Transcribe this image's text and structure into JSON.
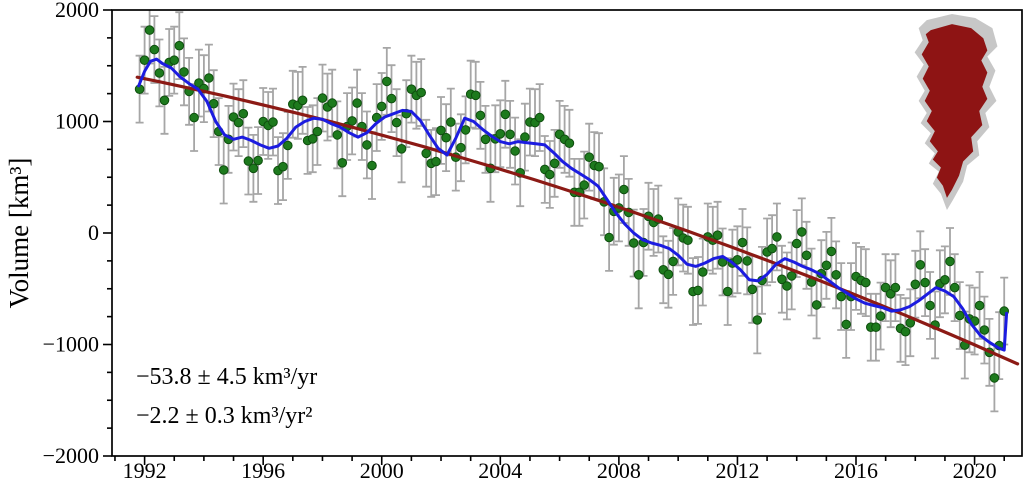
{
  "figure": {
    "annotations": {
      "trend_rate": "−53.8 ± 4.5 km³/yr",
      "trend_accel": "−2.2 ± 0.3 km³/yr²"
    },
    "inset": {
      "label": "greenland-ice-sheet-map",
      "land_color": "#c7c7c7",
      "land_edge": "#9a9a9a",
      "ice_color": "#8e1414"
    }
  },
  "chart_data": {
    "type": "scatter",
    "title": "",
    "xlabel": "",
    "ylabel": "Volume [km³]",
    "xlim": [
      1990.9,
      2021.6
    ],
    "ylim": [
      -2000,
      2000
    ],
    "x_ticks": [
      1992,
      1996,
      2000,
      2004,
      2008,
      2012,
      2016,
      2020
    ],
    "x_minor_step": 1,
    "y_ticks": [
      -2000,
      -1000,
      0,
      1000,
      2000
    ],
    "y_tick_labels": [
      "−2000",
      "−1000",
      "0",
      "1000",
      "2000"
    ],
    "y_minor_step": 250,
    "grid": false,
    "legend": "none",
    "colors": {
      "points": "#1d7a1d",
      "points_edge": "#0e4f0e",
      "error_bars": "#a6a6a6",
      "smoothed_line": "#1c1ce0",
      "trend_line": "#8c1a15",
      "axis": "#000000"
    },
    "series": [
      {
        "name": "monthly-volume-anomaly",
        "type": "scatter_errorbar",
        "error_bar": 300,
        "points": [
          [
            1991.83,
            1290
          ],
          [
            1992.0,
            1550
          ],
          [
            1992.17,
            1820
          ],
          [
            1992.33,
            1645
          ],
          [
            1992.5,
            1435
          ],
          [
            1992.67,
            1190
          ],
          [
            1992.83,
            1530
          ],
          [
            1993.0,
            1550
          ],
          [
            1993.17,
            1680
          ],
          [
            1993.33,
            1445
          ],
          [
            1993.5,
            1270
          ],
          [
            1993.67,
            1035
          ],
          [
            1993.83,
            1345
          ],
          [
            1994.0,
            1295
          ],
          [
            1994.17,
            1390
          ],
          [
            1994.33,
            1160
          ],
          [
            1994.5,
            910
          ],
          [
            1994.67,
            565
          ],
          [
            1994.83,
            840
          ],
          [
            1995.0,
            1040
          ],
          [
            1995.17,
            990
          ],
          [
            1995.33,
            1070
          ],
          [
            1995.5,
            645
          ],
          [
            1995.67,
            580
          ],
          [
            1995.83,
            650
          ],
          [
            1996.0,
            1000
          ],
          [
            1996.17,
            965
          ],
          [
            1996.33,
            995
          ],
          [
            1996.5,
            560
          ],
          [
            1996.67,
            595
          ],
          [
            1996.83,
            785
          ],
          [
            1997.0,
            1155
          ],
          [
            1997.17,
            1145
          ],
          [
            1997.33,
            1190
          ],
          [
            1997.5,
            830
          ],
          [
            1997.67,
            845
          ],
          [
            1997.83,
            910
          ],
          [
            1998.0,
            1210
          ],
          [
            1998.17,
            1130
          ],
          [
            1998.33,
            1165
          ],
          [
            1998.5,
            880
          ],
          [
            1998.67,
            630
          ],
          [
            1998.83,
            955
          ],
          [
            1999.0,
            1005
          ],
          [
            1999.17,
            1165
          ],
          [
            1999.33,
            955
          ],
          [
            1999.5,
            790
          ],
          [
            1999.67,
            605
          ],
          [
            1999.83,
            1035
          ],
          [
            2000.0,
            1135
          ],
          [
            2000.17,
            1360
          ],
          [
            2000.33,
            1205
          ],
          [
            2000.5,
            990
          ],
          [
            2000.67,
            755
          ],
          [
            2000.83,
            1070
          ],
          [
            2001.0,
            1290
          ],
          [
            2001.17,
            1235
          ],
          [
            2001.33,
            1260
          ],
          [
            2001.5,
            715
          ],
          [
            2001.67,
            625
          ],
          [
            2001.83,
            640
          ],
          [
            2002.0,
            920
          ],
          [
            2002.17,
            855
          ],
          [
            2002.33,
            995
          ],
          [
            2002.5,
            680
          ],
          [
            2002.67,
            765
          ],
          [
            2002.83,
            925
          ],
          [
            2003.0,
            1245
          ],
          [
            2003.17,
            1235
          ],
          [
            2003.33,
            1055
          ],
          [
            2003.5,
            840
          ],
          [
            2003.67,
            580
          ],
          [
            2003.83,
            845
          ],
          [
            2004.0,
            890
          ],
          [
            2004.17,
            1065
          ],
          [
            2004.33,
            885
          ],
          [
            2004.5,
            735
          ],
          [
            2004.67,
            540
          ],
          [
            2004.83,
            860
          ],
          [
            2005.0,
            995
          ],
          [
            2005.17,
            990
          ],
          [
            2005.33,
            1035
          ],
          [
            2005.5,
            570
          ],
          [
            2005.67,
            525
          ],
          [
            2005.83,
            625
          ],
          [
            2006.0,
            885
          ],
          [
            2006.17,
            840
          ],
          [
            2006.33,
            805
          ],
          [
            2006.5,
            365
          ],
          [
            2006.67,
            365
          ],
          [
            2006.83,
            430
          ],
          [
            2007.0,
            680
          ],
          [
            2007.17,
            605
          ],
          [
            2007.33,
            595
          ],
          [
            2007.5,
            280
          ],
          [
            2007.67,
            -40
          ],
          [
            2007.83,
            195
          ],
          [
            2008.0,
            225
          ],
          [
            2008.17,
            390
          ],
          [
            2008.33,
            185
          ],
          [
            2008.5,
            -90
          ],
          [
            2008.67,
            -375
          ],
          [
            2008.83,
            -85
          ],
          [
            2009.0,
            150
          ],
          [
            2009.17,
            95
          ],
          [
            2009.33,
            125
          ],
          [
            2009.5,
            -330
          ],
          [
            2009.67,
            -370
          ],
          [
            2009.83,
            -255
          ],
          [
            2010.0,
            10
          ],
          [
            2010.17,
            -45
          ],
          [
            2010.33,
            -65
          ],
          [
            2010.5,
            -525
          ],
          [
            2010.67,
            -515
          ],
          [
            2010.83,
            -350
          ],
          [
            2011.0,
            -35
          ],
          [
            2011.17,
            -65
          ],
          [
            2011.33,
            -20
          ],
          [
            2011.5,
            -260
          ],
          [
            2011.67,
            -525
          ],
          [
            2011.83,
            -270
          ],
          [
            2012.0,
            -240
          ],
          [
            2012.17,
            -85
          ],
          [
            2012.33,
            -250
          ],
          [
            2012.5,
            -505
          ],
          [
            2012.67,
            -780
          ],
          [
            2012.83,
            -425
          ],
          [
            2013.0,
            -170
          ],
          [
            2013.17,
            -140
          ],
          [
            2013.33,
            -35
          ],
          [
            2013.5,
            -415
          ],
          [
            2013.67,
            -475
          ],
          [
            2013.83,
            -385
          ],
          [
            2014.0,
            -95
          ],
          [
            2014.17,
            10
          ],
          [
            2014.33,
            -200
          ],
          [
            2014.5,
            -440
          ],
          [
            2014.67,
            -645
          ],
          [
            2014.83,
            -365
          ],
          [
            2015.0,
            -290
          ],
          [
            2015.17,
            -165
          ],
          [
            2015.33,
            -375
          ],
          [
            2015.5,
            -570
          ],
          [
            2015.67,
            -820
          ],
          [
            2015.83,
            -570
          ],
          [
            2016.0,
            -390
          ],
          [
            2016.17,
            -425
          ],
          [
            2016.33,
            -445
          ],
          [
            2016.5,
            -845
          ],
          [
            2016.67,
            -845
          ],
          [
            2016.83,
            -745
          ],
          [
            2017.0,
            -490
          ],
          [
            2017.17,
            -545
          ],
          [
            2017.33,
            -490
          ],
          [
            2017.5,
            -855
          ],
          [
            2017.67,
            -885
          ],
          [
            2017.83,
            -805
          ],
          [
            2018.0,
            -460
          ],
          [
            2018.17,
            -285
          ],
          [
            2018.33,
            -445
          ],
          [
            2018.5,
            -650
          ],
          [
            2018.67,
            -825
          ],
          [
            2018.83,
            -455
          ],
          [
            2019.0,
            -420
          ],
          [
            2019.17,
            -255
          ],
          [
            2019.33,
            -490
          ],
          [
            2019.5,
            -740
          ],
          [
            2019.67,
            -1005
          ],
          [
            2019.83,
            -770
          ],
          [
            2020.0,
            -790
          ],
          [
            2020.17,
            -650
          ],
          [
            2020.33,
            -870
          ],
          [
            2020.5,
            -1070
          ],
          [
            2020.67,
            -1300
          ],
          [
            2020.83,
            -1010
          ],
          [
            2021.0,
            -700
          ]
        ]
      },
      {
        "name": "smoothed-volume",
        "type": "line",
        "points": [
          [
            1991.8,
            1320
          ],
          [
            1992.0,
            1450
          ],
          [
            1992.2,
            1540
          ],
          [
            1992.4,
            1560
          ],
          [
            1992.6,
            1520
          ],
          [
            1992.9,
            1480
          ],
          [
            1993.2,
            1400
          ],
          [
            1993.5,
            1340
          ],
          [
            1993.8,
            1290
          ],
          [
            1994.1,
            1180
          ],
          [
            1994.4,
            1000
          ],
          [
            1994.7,
            880
          ],
          [
            1995.0,
            840
          ],
          [
            1995.3,
            860
          ],
          [
            1995.6,
            830
          ],
          [
            1995.9,
            790
          ],
          [
            1996.2,
            760
          ],
          [
            1996.5,
            780
          ],
          [
            1996.8,
            850
          ],
          [
            1997.1,
            950
          ],
          [
            1997.4,
            1000
          ],
          [
            1997.7,
            1030
          ],
          [
            1998.0,
            1020
          ],
          [
            1998.3,
            980
          ],
          [
            1998.6,
            950
          ],
          [
            1998.9,
            900
          ],
          [
            1999.2,
            860
          ],
          [
            1999.5,
            900
          ],
          [
            1999.8,
            980
          ],
          [
            2000.1,
            1040
          ],
          [
            2000.4,
            1070
          ],
          [
            2000.7,
            1100
          ],
          [
            2001.0,
            1090
          ],
          [
            2001.3,
            1010
          ],
          [
            2001.6,
            880
          ],
          [
            2001.9,
            760
          ],
          [
            2002.2,
            700
          ],
          [
            2002.5,
            850
          ],
          [
            2002.8,
            1030
          ],
          [
            2003.1,
            1000
          ],
          [
            2003.4,
            930
          ],
          [
            2003.7,
            870
          ],
          [
            2004.0,
            820
          ],
          [
            2004.3,
            800
          ],
          [
            2004.6,
            820
          ],
          [
            2004.9,
            810
          ],
          [
            2005.2,
            800
          ],
          [
            2005.5,
            790
          ],
          [
            2005.8,
            720
          ],
          [
            2006.1,
            640
          ],
          [
            2006.4,
            580
          ],
          [
            2006.7,
            530
          ],
          [
            2007.0,
            480
          ],
          [
            2007.3,
            420
          ],
          [
            2007.6,
            300
          ],
          [
            2007.9,
            180
          ],
          [
            2008.2,
            80
          ],
          [
            2008.5,
            0
          ],
          [
            2008.8,
            -60
          ],
          [
            2009.1,
            -90
          ],
          [
            2009.4,
            -110
          ],
          [
            2009.7,
            -140
          ],
          [
            2010.0,
            -200
          ],
          [
            2010.3,
            -280
          ],
          [
            2010.6,
            -300
          ],
          [
            2010.9,
            -270
          ],
          [
            2011.2,
            -230
          ],
          [
            2011.5,
            -210
          ],
          [
            2011.8,
            -260
          ],
          [
            2012.1,
            -330
          ],
          [
            2012.4,
            -420
          ],
          [
            2012.7,
            -430
          ],
          [
            2013.0,
            -370
          ],
          [
            2013.3,
            -280
          ],
          [
            2013.6,
            -230
          ],
          [
            2013.9,
            -260
          ],
          [
            2014.2,
            -300
          ],
          [
            2014.5,
            -330
          ],
          [
            2014.8,
            -370
          ],
          [
            2015.1,
            -430
          ],
          [
            2015.4,
            -490
          ],
          [
            2015.7,
            -540
          ],
          [
            2016.0,
            -590
          ],
          [
            2016.3,
            -630
          ],
          [
            2016.6,
            -650
          ],
          [
            2016.9,
            -670
          ],
          [
            2017.2,
            -700
          ],
          [
            2017.5,
            -690
          ],
          [
            2017.8,
            -660
          ],
          [
            2018.1,
            -610
          ],
          [
            2018.4,
            -550
          ],
          [
            2018.7,
            -490
          ],
          [
            2019.0,
            -520
          ],
          [
            2019.3,
            -570
          ],
          [
            2019.6,
            -680
          ],
          [
            2019.9,
            -820
          ],
          [
            2020.2,
            -920
          ],
          [
            2020.5,
            -980
          ],
          [
            2020.8,
            -1030
          ],
          [
            2021.0,
            -1050
          ],
          [
            2021.08,
            -720
          ]
        ]
      },
      {
        "name": "quadratic-trend",
        "type": "trend",
        "t0": 1991.7,
        "v0": 1400,
        "slope_km3_per_yr": -53.8,
        "slope_uncertainty": 4.5,
        "accel_km3_per_yr2": -2.2,
        "accel_uncertainty": 0.3,
        "t_range": [
          1991.75,
          2021.45
        ]
      }
    ]
  }
}
